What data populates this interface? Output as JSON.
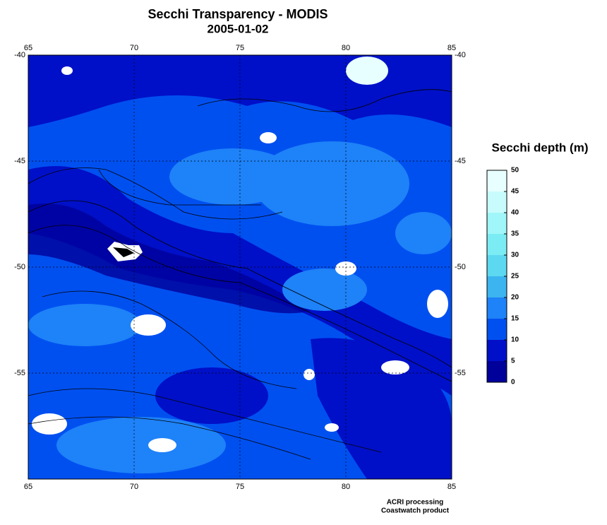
{
  "chart_data": {
    "type": "map",
    "title": "Secchi Transparency - MODIS",
    "subtitle": "2005-01-02",
    "xlim": [
      65,
      85
    ],
    "xticks": [
      65,
      70,
      75,
      80,
      85
    ],
    "ylim": [
      -60,
      -40
    ],
    "yticks": [
      -40,
      -45,
      -50,
      -55
    ],
    "grid": true,
    "colorbar": {
      "title": "Secchi depth (m)",
      "lim": [
        0,
        50
      ],
      "ticks": [
        0,
        5,
        10,
        15,
        20,
        25,
        30,
        35,
        40,
        45,
        50
      ],
      "colors": [
        "#00009a",
        "#0010c8",
        "#0050f0",
        "#1e82f8",
        "#3cb4f0",
        "#5cd8f0",
        "#7cecf4",
        "#a0f6f8",
        "#c8fcfc",
        "#e8ffff"
      ]
    },
    "credits": [
      "ACRI processing",
      "Coastwatch product"
    ]
  }
}
